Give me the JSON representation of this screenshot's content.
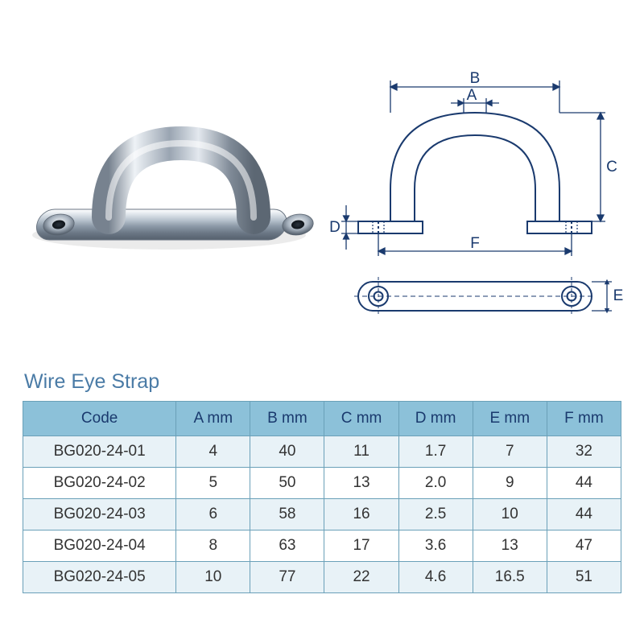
{
  "title": "Wire Eye Strap",
  "title_color": "#4a7ba6",
  "diagram_labels": {
    "A": "A",
    "B": "B",
    "C": "C",
    "D": "D",
    "E": "E",
    "F": "F"
  },
  "diagram_label_color": "#1a3a6e",
  "table": {
    "header_bg": "#8cc1d9",
    "header_text_color": "#1a3a6e",
    "row_odd_bg": "#e8f2f7",
    "row_even_bg": "#ffffff",
    "border_color": "#6aa0b8",
    "cell_text_color": "#333333",
    "columns": [
      "Code",
      "A mm",
      "B mm",
      "C mm",
      "D mm",
      "E mm",
      "F mm"
    ],
    "rows": [
      [
        "BG020-24-01",
        "4",
        "40",
        "11",
        "1.7",
        "7",
        "32"
      ],
      [
        "BG020-24-02",
        "5",
        "50",
        "13",
        "2.0",
        "9",
        "44"
      ],
      [
        "BG020-24-03",
        "6",
        "58",
        "16",
        "2.5",
        "10",
        "44"
      ],
      [
        "BG020-24-04",
        "8",
        "63",
        "17",
        "3.6",
        "13",
        "47"
      ],
      [
        "BG020-24-05",
        "10",
        "77",
        "22",
        "4.6",
        "16.5",
        "51"
      ]
    ]
  }
}
